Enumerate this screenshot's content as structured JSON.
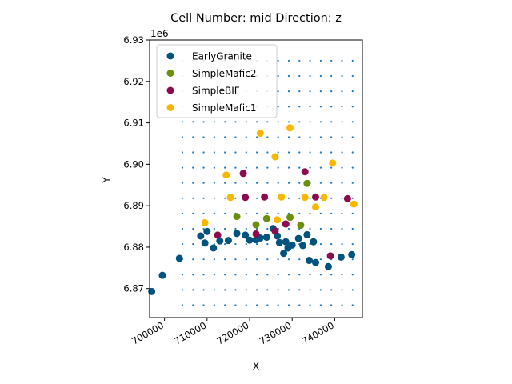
{
  "chart_data": {
    "type": "scatter",
    "title": "Cell Number: mid Direction: z",
    "xlabel": "X",
    "ylabel": "Y",
    "y_offset_label": "1e6",
    "xlim": [
      696500,
      746500
    ],
    "ylim": [
      6863000,
      6930000
    ],
    "x_ticks": [
      700000,
      710000,
      720000,
      730000,
      740000
    ],
    "x_tick_labels": [
      "700000",
      "710000",
      "720000",
      "730000",
      "740000"
    ],
    "y_ticks": [
      6870000,
      6880000,
      6890000,
      6900000,
      6910000,
      6920000,
      6930000
    ],
    "y_tick_labels": [
      "6.87",
      "6.88",
      "6.89",
      "6.90",
      "6.91",
      "6.92",
      "6.93"
    ],
    "grid": false,
    "legend_position": "upper-left",
    "grid_points": {
      "color": "#1f77b4",
      "x_start": 704200,
      "x_end": 744200,
      "x_step": 2500,
      "y_start": 6866000,
      "y_end": 6925000,
      "y_step": 3687
    },
    "series": [
      {
        "name": "EarlyGranite",
        "color": "#00537e",
        "points": [
          [
            697000,
            6869300
          ],
          [
            699500,
            6873200
          ],
          [
            703500,
            6877300
          ],
          [
            708500,
            6882700
          ],
          [
            709500,
            6881000
          ],
          [
            710000,
            6883800
          ],
          [
            711500,
            6879800
          ],
          [
            713000,
            6881500
          ],
          [
            715000,
            6881600
          ],
          [
            717000,
            6883300
          ],
          [
            719000,
            6882900
          ],
          [
            720000,
            6881700
          ],
          [
            721500,
            6881800
          ],
          [
            722500,
            6882200
          ],
          [
            724000,
            6882400
          ],
          [
            725500,
            6884500
          ],
          [
            726500,
            6882700
          ],
          [
            727000,
            6881100
          ],
          [
            728000,
            6878500
          ],
          [
            728500,
            6881300
          ],
          [
            729000,
            6879800
          ],
          [
            730000,
            6880500
          ],
          [
            731500,
            6882100
          ],
          [
            732500,
            6880400
          ],
          [
            733500,
            6883000
          ],
          [
            734000,
            6876800
          ],
          [
            735000,
            6881300
          ],
          [
            735500,
            6876300
          ],
          [
            738500,
            6875300
          ],
          [
            741500,
            6877600
          ],
          [
            744000,
            6878200
          ]
        ]
      },
      {
        "name": "SimpleMafic2",
        "color": "#6b8f0a",
        "points": [
          [
            717000,
            6887400
          ],
          [
            721500,
            6885400
          ],
          [
            724000,
            6886900
          ],
          [
            728500,
            6885600
          ],
          [
            729500,
            6887200
          ],
          [
            732000,
            6885300
          ],
          [
            733500,
            6895400
          ]
        ]
      },
      {
        "name": "SimpleBIF",
        "color": "#8c0a4e",
        "points": [
          [
            712500,
            6882900
          ],
          [
            718500,
            6897800
          ],
          [
            719000,
            6892000
          ],
          [
            721500,
            6883200
          ],
          [
            723500,
            6892100
          ],
          [
            726000,
            6883900
          ],
          [
            728500,
            6885600
          ],
          [
            733000,
            6898200
          ],
          [
            735500,
            6892100
          ],
          [
            739000,
            6877900
          ],
          [
            743000,
            6891700
          ]
        ]
      },
      {
        "name": "SimpleMafic1",
        "color": "#f8b800",
        "points": [
          [
            709500,
            6885900
          ],
          [
            714500,
            6897400
          ],
          [
            715500,
            6892000
          ],
          [
            722500,
            6907500
          ],
          [
            726000,
            6901800
          ],
          [
            726500,
            6886600
          ],
          [
            729500,
            6908800
          ],
          [
            733000,
            6892000
          ],
          [
            735500,
            6889700
          ],
          [
            737500,
            6892000
          ],
          [
            739500,
            6900300
          ],
          [
            744500,
            6890400
          ],
          [
            727500,
            6892100
          ]
        ]
      }
    ]
  }
}
